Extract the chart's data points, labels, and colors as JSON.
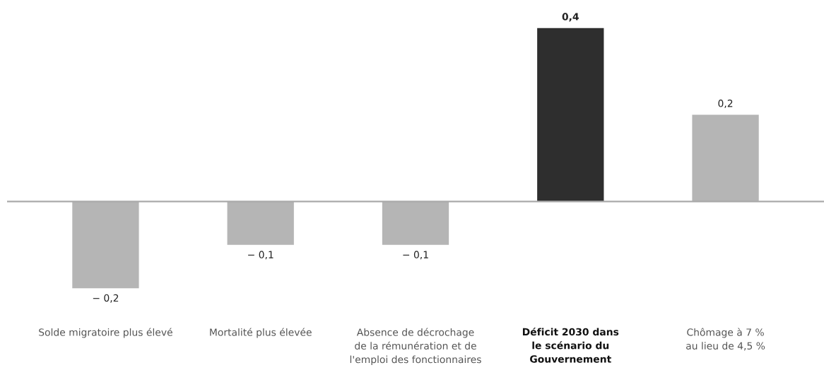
{
  "chart_data": {
    "type": "bar",
    "categories": [
      "Solde migratoire plus élevé",
      "Mortalité plus élevée",
      "Absence de décrochage\nde la rémunération et de\nl'emploi des fonctionnaires",
      "Déficit 2030 dans\nle scénario du\nGouvernement",
      "Chômage à 7 %\nau lieu de 4,5 %"
    ],
    "values": [
      -0.2,
      -0.1,
      -0.1,
      0.4,
      0.2
    ],
    "colors": [
      "#b5b5b5",
      "#b5b5b5",
      "#b5b5b5",
      "#2e2e2e",
      "#b5b5b5"
    ],
    "value_labels": [
      "− 0,2",
      "− 0,1",
      "− 0,1",
      "0,4",
      "0,2"
    ]
  }
}
